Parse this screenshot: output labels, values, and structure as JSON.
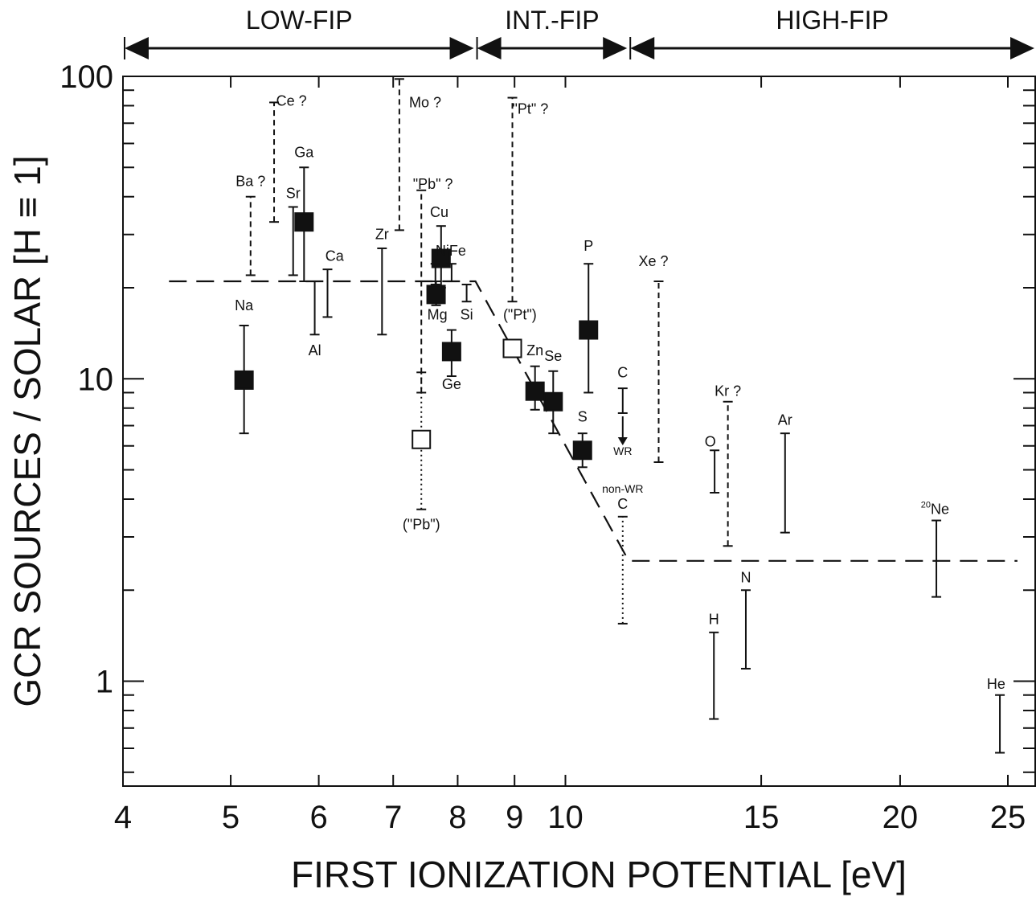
{
  "chart_data": {
    "type": "scatter",
    "xscale": "log",
    "yscale": "log",
    "xlim": [
      4,
      26.5
    ],
    "ylim": [
      0.45,
      100
    ],
    "xlabel": "FIRST   IONIZATION  POTENTIAL [eV]",
    "ylabel": "GCR  SOURCES / SOLAR   [H ≡ 1]",
    "x_ticks": [
      4,
      5,
      6,
      7,
      8,
      9,
      10,
      15,
      20,
      25
    ],
    "y_ticks": [
      1,
      10,
      100
    ],
    "y_tick_labels": [
      "1",
      "10",
      "100"
    ],
    "regions": [
      {
        "label": "LOW-FIP",
        "x_range": [
          4,
          8.3
        ]
      },
      {
        "label": "INT.-FIP",
        "x_range": [
          8.3,
          11.4
        ]
      },
      {
        "label": "HIGH-FIP",
        "x_range": [
          11.4,
          26.5
        ]
      }
    ],
    "model_curve": [
      [
        4.4,
        21
      ],
      [
        8.3,
        21
      ],
      [
        11.4,
        2.5
      ],
      [
        25.5,
        2.5
      ]
    ],
    "points": [
      {
        "label": "Na",
        "x": 5.14,
        "y": 9.9,
        "lo": 6.6,
        "hi": 15,
        "marker": "filled",
        "line": "solid",
        "lx": 5.14,
        "ly": 17.5
      },
      {
        "label": "Ba ?",
        "x": 5.21,
        "y": null,
        "lo": 22,
        "hi": 40,
        "marker": "none",
        "line": "dashed",
        "lx": 5.21,
        "ly": 45
      },
      {
        "label": "Ce ?",
        "x": 5.47,
        "y": null,
        "lo": 33,
        "hi": 82,
        "marker": "none",
        "line": "dashed",
        "lx": 5.67,
        "ly": 83
      },
      {
        "label": "Sr",
        "x": 5.69,
        "y": null,
        "lo": 22,
        "hi": 37,
        "marker": "none",
        "line": "solid",
        "lx": 5.69,
        "ly": 41
      },
      {
        "label": "Ga",
        "x": 5.82,
        "y": 33,
        "lo": 21,
        "hi": 50,
        "marker": "filled",
        "line": "solid",
        "lx": 5.82,
        "ly": 56
      },
      {
        "label": "Al",
        "x": 5.95,
        "y": null,
        "lo": 14,
        "hi": 21,
        "marker": "none",
        "line": "solid",
        "lx": 5.95,
        "ly": 12.4
      },
      {
        "label": "Ca",
        "x": 6.11,
        "y": null,
        "lo": 16,
        "hi": 23,
        "marker": "none",
        "line": "solid",
        "lx": 6.2,
        "ly": 25.5
      },
      {
        "label": "Zr",
        "x": 6.84,
        "y": null,
        "lo": 14,
        "hi": 27,
        "marker": "none",
        "line": "solid",
        "lx": 6.84,
        "ly": 30
      },
      {
        "label": "Mo ?",
        "x": 7.09,
        "y": null,
        "lo": 31,
        "hi": 98,
        "marker": "none",
        "line": "dashed",
        "lx": 7.48,
        "ly": 82
      },
      {
        "label": "Mg",
        "x": 7.65,
        "y": 19,
        "lo": 17.5,
        "hi": 21,
        "marker": "filled",
        "line": "solid",
        "lx": 7.67,
        "ly": 16.3
      },
      {
        "label": "\"Pb\" ?",
        "x": 7.42,
        "y": null,
        "lo": 9,
        "hi": 42,
        "marker": "none",
        "line": "dashed",
        "lx": 7.6,
        "ly": 44
      },
      {
        "label": "(\"Pb\")",
        "x": 7.42,
        "y": 6.3,
        "lo": 3.7,
        "hi": 10.5,
        "marker": "open",
        "line": "dotted",
        "lx": 7.42,
        "ly": 3.3
      },
      {
        "label": "Cu",
        "x": 7.73,
        "y": 25,
        "lo": 20,
        "hi": 32,
        "marker": "filled",
        "line": "solid",
        "lx": 7.7,
        "ly": 35.5
      },
      {
        "label": "Ni",
        "x": 7.64,
        "y": null,
        "lo": 20.5,
        "hi": 24,
        "marker": "none",
        "line": "solid",
        "lx": 7.75,
        "ly": 26.5
      },
      {
        "label": "Fe",
        "x": 7.9,
        "y": null,
        "lo": 21,
        "hi": 24,
        "marker": "none",
        "line": "solid",
        "lx": 8.0,
        "ly": 26.5
      },
      {
        "label": "Si",
        "x": 8.15,
        "y": null,
        "lo": 18,
        "hi": 20.5,
        "marker": "none",
        "line": "solid",
        "lx": 8.15,
        "ly": 16.3
      },
      {
        "label": "Ge",
        "x": 7.9,
        "y": 12.3,
        "lo": 10.2,
        "hi": 14.5,
        "marker": "filled",
        "line": "solid",
        "lx": 7.9,
        "ly": 9.6
      },
      {
        "label": "\"Pt\" ?",
        "x": 8.96,
        "y": null,
        "lo": 18,
        "hi": 85,
        "marker": "none",
        "line": "dashed",
        "lx": 9.3,
        "ly": 78
      },
      {
        "label": "(\"Pt\")",
        "x": 8.96,
        "y": 12.6,
        "lo": null,
        "hi": null,
        "marker": "open",
        "line": "none",
        "lx": 9.1,
        "ly": 16.3
      },
      {
        "label": "Zn",
        "x": 9.39,
        "y": 9.1,
        "lo": 7.9,
        "hi": 11,
        "marker": "filled",
        "line": "solid",
        "lx": 9.39,
        "ly": 12.4
      },
      {
        "label": "Se",
        "x": 9.75,
        "y": 8.4,
        "lo": 6.6,
        "hi": 10.6,
        "marker": "filled",
        "line": "solid",
        "lx": 9.75,
        "ly": 11.9
      },
      {
        "label": "S",
        "x": 10.36,
        "y": 5.8,
        "lo": 5.1,
        "hi": 6.6,
        "marker": "filled",
        "line": "solid",
        "lx": 10.36,
        "ly": 7.5
      },
      {
        "label": "P",
        "x": 10.49,
        "y": 14.5,
        "lo": 9,
        "hi": 24,
        "marker": "filled",
        "line": "solid",
        "lx": 10.49,
        "ly": 27.5
      },
      {
        "label": "C",
        "x": 11.26,
        "y": null,
        "lo": 7.7,
        "hi": 9.3,
        "marker": "arrow",
        "line": "solid",
        "lx": 11.26,
        "ly": 10.5,
        "note": "WR"
      },
      {
        "label": "C",
        "x": 11.26,
        "y": null,
        "lo": 1.55,
        "hi": 3.5,
        "marker": "none",
        "line": "dotted",
        "lx": 11.26,
        "ly": 3.85,
        "note": "non-WR"
      },
      {
        "label": "Xe ?",
        "x": 12.13,
        "y": null,
        "lo": 5.3,
        "hi": 21,
        "marker": "none",
        "line": "dashed",
        "lx": 12.0,
        "ly": 24.5
      },
      {
        "label": "O",
        "x": 13.62,
        "y": null,
        "lo": 4.2,
        "hi": 5.8,
        "marker": "none",
        "line": "solid",
        "lx": 13.5,
        "ly": 6.2
      },
      {
        "label": "H",
        "x": 13.6,
        "y": null,
        "lo": 0.75,
        "hi": 1.45,
        "marker": "none",
        "line": "solid",
        "lx": 13.6,
        "ly": 1.6
      },
      {
        "label": "Kr ?",
        "x": 14.0,
        "y": null,
        "lo": 2.8,
        "hi": 8.4,
        "marker": "none",
        "line": "dashed",
        "lx": 14.0,
        "ly": 9.1
      },
      {
        "label": "N",
        "x": 14.53,
        "y": null,
        "lo": 1.1,
        "hi": 2.0,
        "marker": "none",
        "line": "solid",
        "lx": 14.53,
        "ly": 2.2
      },
      {
        "label": "Ar",
        "x": 15.76,
        "y": null,
        "lo": 3.1,
        "hi": 6.6,
        "marker": "none",
        "line": "solid",
        "lx": 15.76,
        "ly": 7.3
      },
      {
        "label": "Ne",
        "x": 21.56,
        "y": null,
        "lo": 1.9,
        "hi": 3.4,
        "marker": "none",
        "line": "solid",
        "lx": 21.5,
        "ly": 3.7,
        "sup": "20"
      },
      {
        "label": "He",
        "x": 24.59,
        "y": null,
        "lo": 0.58,
        "hi": 0.9,
        "marker": "none",
        "line": "solid",
        "lx": 24.4,
        "ly": 0.98
      }
    ]
  }
}
